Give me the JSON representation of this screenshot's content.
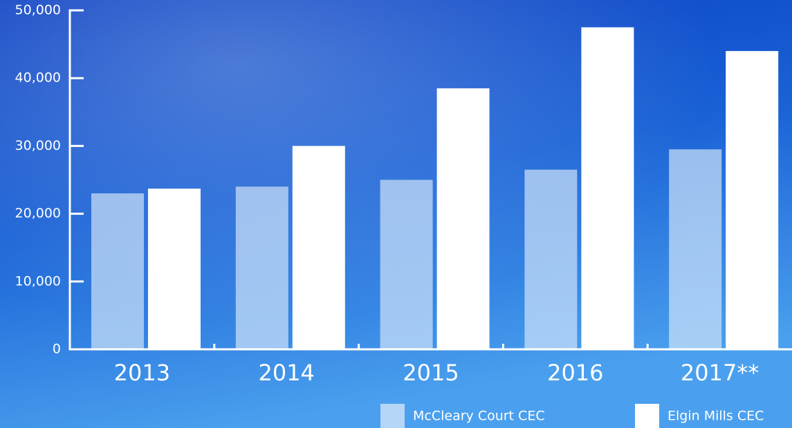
{
  "chart_data": {
    "type": "bar",
    "categories": [
      "2013",
      "2014",
      "2015",
      "2016",
      "2017**"
    ],
    "series": [
      {
        "name": "McCleary Court CEC",
        "color": "#cfe3f8",
        "values": [
          23000,
          24000,
          25000,
          26500,
          29500
        ]
      },
      {
        "name": "Elgin Mills CEC",
        "color": "#ffffff",
        "values": [
          23700,
          30000,
          38500,
          47500,
          44000
        ]
      }
    ],
    "ylim": [
      0,
      50000
    ],
    "yticks": [
      {
        "value": 0,
        "label": "0"
      },
      {
        "value": 10000,
        "label": "10,000"
      },
      {
        "value": 20000,
        "label": "20,000"
      },
      {
        "value": 30000,
        "label": "30,000"
      },
      {
        "value": 40000,
        "label": "40,000"
      },
      {
        "value": 50000,
        "label": "50,000"
      }
    ],
    "legend": "bottom-right"
  }
}
